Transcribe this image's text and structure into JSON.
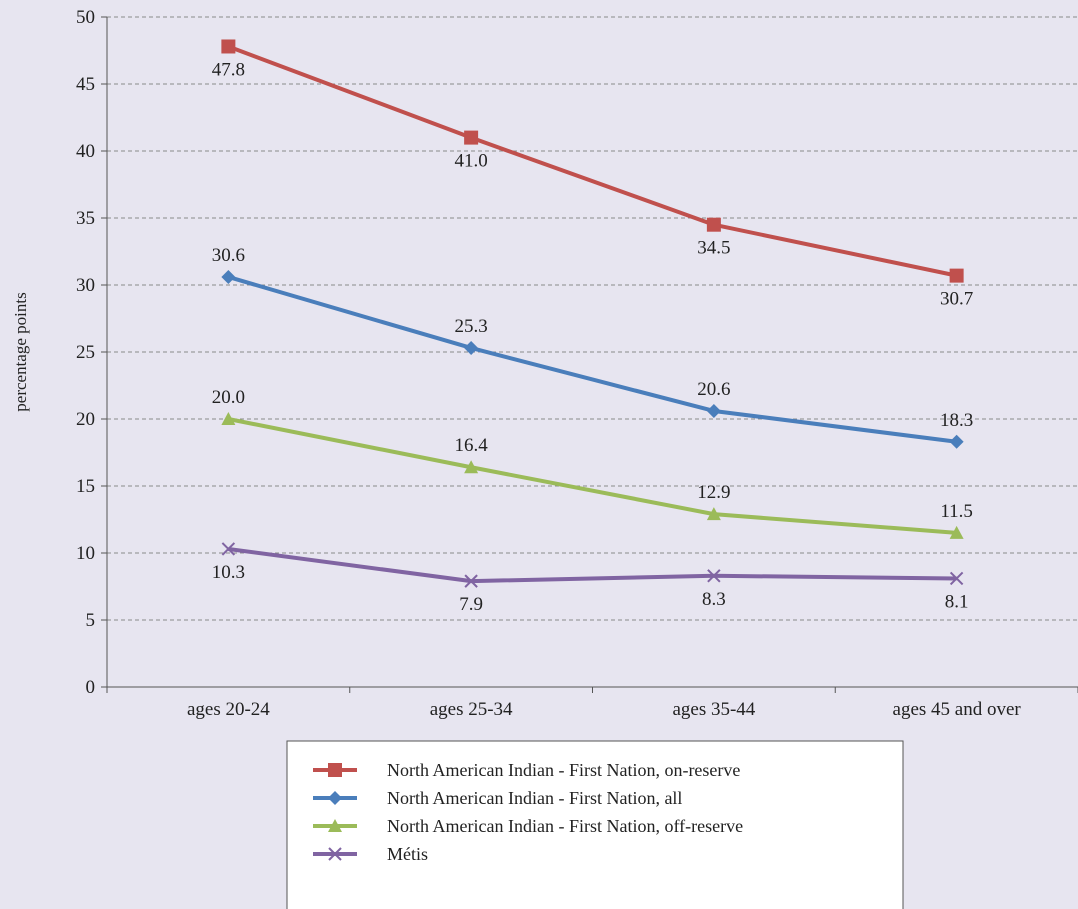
{
  "chart_data": {
    "type": "line",
    "categories": [
      "ages 20-24",
      "ages 25-34",
      "ages 35-44",
      "ages 45 and over"
    ],
    "ylabel": "percentage points",
    "xlabel": "",
    "ylim": [
      0,
      50
    ],
    "ytick_step": 5,
    "grid": true,
    "legend_position": "bottom",
    "series": [
      {
        "name": "North American Indian - First Nation, on-reserve",
        "values": [
          47.8,
          41.0,
          34.5,
          30.7
        ],
        "labels": [
          "47.8",
          "41.0",
          "34.5",
          "30.7"
        ],
        "label_side": [
          "below",
          "below",
          "below",
          "below"
        ],
        "color": "#c0504d",
        "marker": "square"
      },
      {
        "name": "North American Indian - First Nation, all",
        "values": [
          30.6,
          25.3,
          20.6,
          18.3
        ],
        "labels": [
          "30.6",
          "25.3",
          "20.6",
          "18.3"
        ],
        "label_side": [
          "above",
          "above",
          "above",
          "above"
        ],
        "color": "#4a7ebb",
        "marker": "diamond"
      },
      {
        "name": "North American Indian - First Nation, off-reserve",
        "values": [
          20.0,
          16.4,
          12.9,
          11.5
        ],
        "labels": [
          "20.0",
          "16.4",
          "12.9",
          "11.5"
        ],
        "label_side": [
          "above",
          "above",
          "above",
          "above"
        ],
        "color": "#9bbb59",
        "marker": "triangle"
      },
      {
        "name": "Métis",
        "values": [
          10.3,
          7.9,
          8.3,
          8.1
        ],
        "labels": [
          "10.3",
          "7.9",
          "8.3",
          "8.1"
        ],
        "label_side": [
          "below",
          "below",
          "below",
          "below"
        ],
        "color": "#8064a2",
        "marker": "x"
      }
    ]
  }
}
